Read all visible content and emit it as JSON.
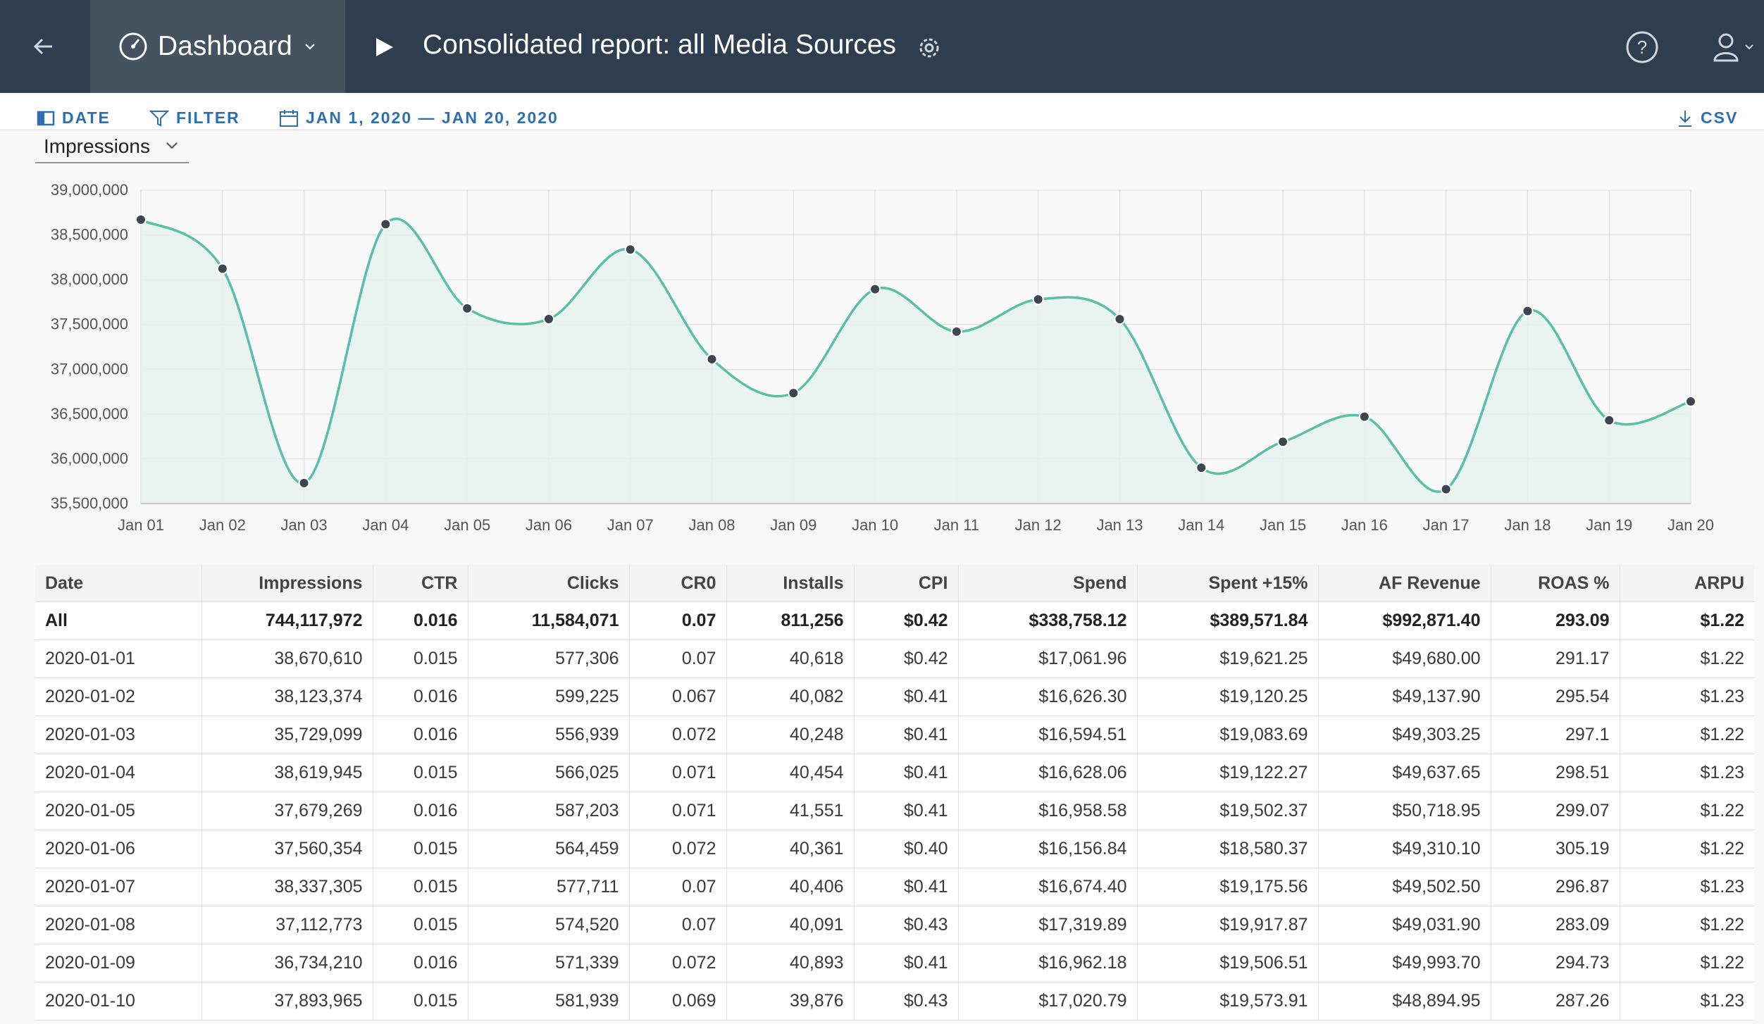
{
  "header": {
    "dashboard_label": "Dashboard",
    "report_title": "Consolidated report: all Media Sources"
  },
  "toolbar": {
    "date_label": "DATE",
    "filter_label": "FILTER",
    "date_range": "JAN 1, 2020 — JAN 20, 2020",
    "csv_label": "CSV"
  },
  "metric_select": {
    "value": "Impressions"
  },
  "chart_data": {
    "type": "area",
    "categories": [
      "Jan 01",
      "Jan 02",
      "Jan 03",
      "Jan 04",
      "Jan 05",
      "Jan 06",
      "Jan 07",
      "Jan 08",
      "Jan 09",
      "Jan 10",
      "Jan 11",
      "Jan 12",
      "Jan 13",
      "Jan 14",
      "Jan 15",
      "Jan 16",
      "Jan 17",
      "Jan 18",
      "Jan 19",
      "Jan 20"
    ],
    "values": [
      38670610,
      38123374,
      35729099,
      38619945,
      37679269,
      37560354,
      38337305,
      37112773,
      36734210,
      37893965,
      37420000,
      37780000,
      37560000,
      35900000,
      36190000,
      36470000,
      35660000,
      37650000,
      36430000,
      36640000
    ],
    "yticks": [
      "35,500,000",
      "36,000,000",
      "36,500,000",
      "37,000,000",
      "37,500,000",
      "38,000,000",
      "38,500,000",
      "39,000,000"
    ],
    "ylim": [
      35500000,
      39000000
    ],
    "line_color": "#5bbfa8",
    "fill_color": "#e6f2ef",
    "point_color": "#3d4650",
    "grid": true
  },
  "table": {
    "columns": [
      "Date",
      "Impressions",
      "CTR",
      "Clicks",
      "CR0",
      "Installs",
      "CPI",
      "Spend",
      "Spent +15%",
      "AF Revenue",
      "ROAS %",
      "ARPU"
    ],
    "total": [
      "All",
      "744,117,972",
      "0.016",
      "11,584,071",
      "0.07",
      "811,256",
      "$0.42",
      "$338,758.12",
      "$389,571.84",
      "$992,871.40",
      "293.09",
      "$1.22"
    ],
    "rows": [
      [
        "2020-01-01",
        "38,670,610",
        "0.015",
        "577,306",
        "0.07",
        "40,618",
        "$0.42",
        "$17,061.96",
        "$19,621.25",
        "$49,680.00",
        "291.17",
        "$1.22"
      ],
      [
        "2020-01-02",
        "38,123,374",
        "0.016",
        "599,225",
        "0.067",
        "40,082",
        "$0.41",
        "$16,626.30",
        "$19,120.25",
        "$49,137.90",
        "295.54",
        "$1.23"
      ],
      [
        "2020-01-03",
        "35,729,099",
        "0.016",
        "556,939",
        "0.072",
        "40,248",
        "$0.41",
        "$16,594.51",
        "$19,083.69",
        "$49,303.25",
        "297.1",
        "$1.22"
      ],
      [
        "2020-01-04",
        "38,619,945",
        "0.015",
        "566,025",
        "0.071",
        "40,454",
        "$0.41",
        "$16,628.06",
        "$19,122.27",
        "$49,637.65",
        "298.51",
        "$1.23"
      ],
      [
        "2020-01-05",
        "37,679,269",
        "0.016",
        "587,203",
        "0.071",
        "41,551",
        "$0.41",
        "$16,958.58",
        "$19,502.37",
        "$50,718.95",
        "299.07",
        "$1.22"
      ],
      [
        "2020-01-06",
        "37,560,354",
        "0.015",
        "564,459",
        "0.072",
        "40,361",
        "$0.40",
        "$16,156.84",
        "$18,580.37",
        "$49,310.10",
        "305.19",
        "$1.22"
      ],
      [
        "2020-01-07",
        "38,337,305",
        "0.015",
        "577,711",
        "0.07",
        "40,406",
        "$0.41",
        "$16,674.40",
        "$19,175.56",
        "$49,502.50",
        "296.87",
        "$1.23"
      ],
      [
        "2020-01-08",
        "37,112,773",
        "0.015",
        "574,520",
        "0.07",
        "40,091",
        "$0.43",
        "$17,319.89",
        "$19,917.87",
        "$49,031.90",
        "283.09",
        "$1.22"
      ],
      [
        "2020-01-09",
        "36,734,210",
        "0.016",
        "571,339",
        "0.072",
        "40,893",
        "$0.41",
        "$16,962.18",
        "$19,506.51",
        "$49,993.70",
        "294.73",
        "$1.22"
      ],
      [
        "2020-01-10",
        "37,893,965",
        "0.015",
        "581,939",
        "0.069",
        "39,876",
        "$0.43",
        "$17,020.79",
        "$19,573.91",
        "$48,894.95",
        "287.26",
        "$1.23"
      ]
    ]
  }
}
